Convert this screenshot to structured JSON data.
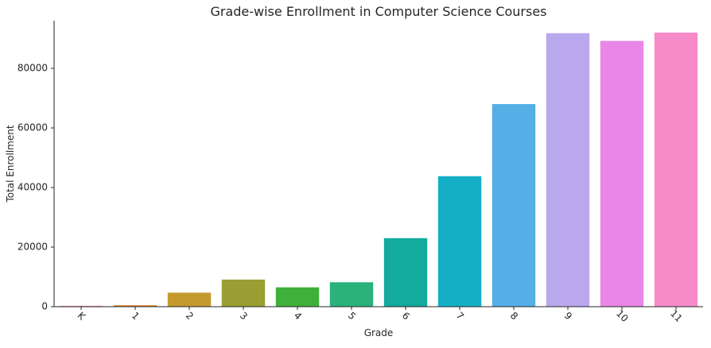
{
  "chart_data": {
    "type": "bar",
    "title": "Grade-wise Enrollment in Computer Science Courses",
    "xlabel": "Grade",
    "ylabel": "Total Enrollment",
    "categories": [
      "K",
      "1",
      "2",
      "3",
      "4",
      "5",
      "6",
      "7",
      "8",
      "9",
      "10",
      "11"
    ],
    "values": [
      300,
      500,
      4700,
      9100,
      6500,
      8200,
      23000,
      43800,
      68000,
      91800,
      89200,
      92000
    ],
    "colors": [
      "#f2a0a8",
      "#d98a3a",
      "#c49a2e",
      "#9a9e33",
      "#3fb03a",
      "#2bb17a",
      "#12ab9e",
      "#14afc5",
      "#56aee6",
      "#b9a8ee",
      "#ea86e8",
      "#f78ac9"
    ],
    "ylim": [
      0,
      96000
    ],
    "yticks": [
      0,
      20000,
      40000,
      60000,
      80000
    ],
    "grid": false,
    "legend": false,
    "xtick_rotation": 45
  }
}
